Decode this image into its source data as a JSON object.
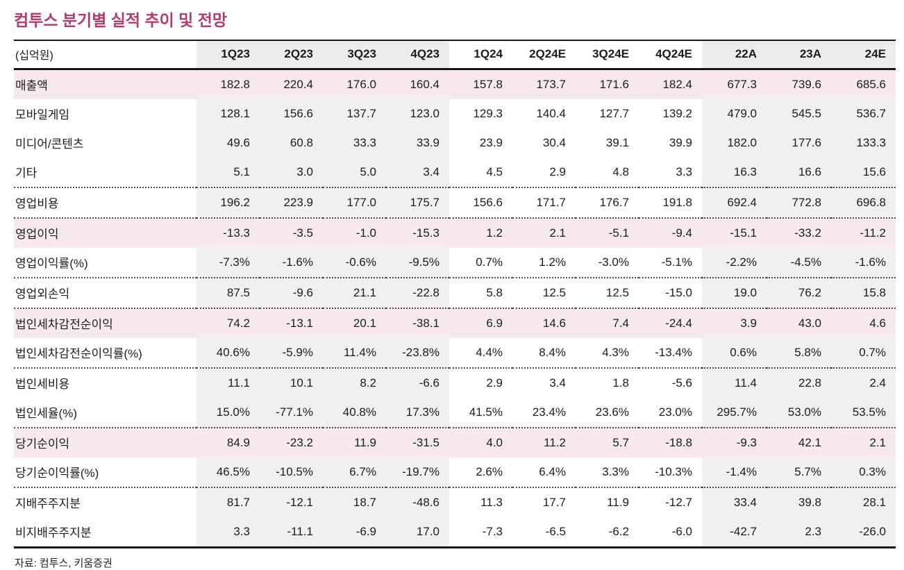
{
  "title": "컴투스 분기별 실적 추이 및 전망",
  "source": "자료: 컴투스, 키움증권",
  "colors": {
    "title_accent": "#b13c6e",
    "highlight_row_bg": "#f8e9ee",
    "shaded_column_bg": "#f1eff0",
    "rule_color": "#161616"
  },
  "table": {
    "unit_label": "(십억원)",
    "columns": [
      "1Q23",
      "2Q23",
      "3Q23",
      "4Q23",
      "1Q24",
      "2Q24E",
      "3Q24E",
      "4Q24E",
      "22A",
      "23A",
      "24E"
    ],
    "rows": [
      {
        "label": "매출액",
        "highlight": true,
        "sep_above": false,
        "values": [
          "182.8",
          "220.4",
          "176.0",
          "160.4",
          "157.8",
          "173.7",
          "171.6",
          "182.4",
          "677.3",
          "739.6",
          "685.6"
        ]
      },
      {
        "label": "모바일게임",
        "highlight": false,
        "sep_above": false,
        "values": [
          "128.1",
          "156.6",
          "137.7",
          "123.0",
          "129.3",
          "140.4",
          "127.7",
          "139.2",
          "479.0",
          "545.5",
          "536.7"
        ]
      },
      {
        "label": "미디어/콘텐츠",
        "highlight": false,
        "sep_above": false,
        "values": [
          "49.6",
          "60.8",
          "33.3",
          "33.9",
          "23.9",
          "30.4",
          "39.1",
          "39.9",
          "182.0",
          "177.6",
          "133.3"
        ]
      },
      {
        "label": "기타",
        "highlight": false,
        "sep_above": false,
        "values": [
          "5.1",
          "3.0",
          "5.0",
          "3.4",
          "4.5",
          "2.9",
          "4.8",
          "3.3",
          "16.3",
          "16.6",
          "15.6"
        ]
      },
      {
        "label": "영업비용",
        "highlight": false,
        "sep_above": true,
        "values": [
          "196.2",
          "223.9",
          "177.0",
          "175.7",
          "156.6",
          "171.7",
          "176.7",
          "191.8",
          "692.4",
          "772.8",
          "696.8"
        ]
      },
      {
        "label": "영업이익",
        "highlight": true,
        "sep_above": true,
        "values": [
          "-13.3",
          "-3.5",
          "-1.0",
          "-15.3",
          "1.2",
          "2.1",
          "-5.1",
          "-9.4",
          "-15.1",
          "-33.2",
          "-11.2"
        ]
      },
      {
        "label": "영업이익률(%)",
        "highlight": false,
        "sep_above": false,
        "values": [
          "-7.3%",
          "-1.6%",
          "-0.6%",
          "-9.5%",
          "0.7%",
          "1.2%",
          "-3.0%",
          "-5.1%",
          "-2.2%",
          "-4.5%",
          "-1.6%"
        ]
      },
      {
        "label": "영업외손익",
        "highlight": false,
        "sep_above": true,
        "values": [
          "87.5",
          "-9.6",
          "21.1",
          "-22.8",
          "5.8",
          "12.5",
          "12.5",
          "-15.0",
          "19.0",
          "76.2",
          "15.8"
        ]
      },
      {
        "label": "법인세차감전순이익",
        "highlight": true,
        "sep_above": true,
        "values": [
          "74.2",
          "-13.1",
          "20.1",
          "-38.1",
          "6.9",
          "14.6",
          "7.4",
          "-24.4",
          "3.9",
          "43.0",
          "4.6"
        ]
      },
      {
        "label": "법인세차감전순이익률(%)",
        "highlight": false,
        "sep_above": false,
        "values": [
          "40.6%",
          "-5.9%",
          "11.4%",
          "-23.8%",
          "4.4%",
          "8.4%",
          "4.3%",
          "-13.4%",
          "0.6%",
          "5.8%",
          "0.7%"
        ]
      },
      {
        "label": "법인세비용",
        "highlight": false,
        "sep_above": true,
        "values": [
          "11.1",
          "10.1",
          "8.2",
          "-6.6",
          "2.9",
          "3.4",
          "1.8",
          "-5.6",
          "11.4",
          "22.8",
          "2.4"
        ]
      },
      {
        "label": "법인세율(%)",
        "highlight": false,
        "sep_above": false,
        "values": [
          "15.0%",
          "-77.1%",
          "40.8%",
          "17.3%",
          "41.5%",
          "23.4%",
          "23.6%",
          "23.0%",
          "295.7%",
          "53.0%",
          "53.5%"
        ]
      },
      {
        "label": "당기순이익",
        "highlight": true,
        "sep_above": true,
        "values": [
          "84.9",
          "-23.2",
          "11.9",
          "-31.5",
          "4.0",
          "11.2",
          "5.7",
          "-18.8",
          "-9.3",
          "42.1",
          "2.1"
        ]
      },
      {
        "label": "당기순이익률(%)",
        "highlight": false,
        "sep_above": false,
        "values": [
          "46.5%",
          "-10.5%",
          "6.7%",
          "-19.7%",
          "2.6%",
          "6.4%",
          "3.3%",
          "-10.3%",
          "-1.4%",
          "5.7%",
          "0.3%"
        ]
      },
      {
        "label": "지배주주지분",
        "highlight": false,
        "sep_above": true,
        "values": [
          "81.7",
          "-12.1",
          "18.7",
          "-48.6",
          "11.3",
          "17.7",
          "11.9",
          "-12.7",
          "33.4",
          "39.8",
          "28.1"
        ]
      },
      {
        "label": "비지배주주지분",
        "highlight": false,
        "sep_above": false,
        "values": [
          "3.3",
          "-11.1",
          "-6.9",
          "17.0",
          "-7.3",
          "-6.5",
          "-6.2",
          "-6.0",
          "-42.7",
          "2.3",
          "-26.0"
        ]
      }
    ]
  }
}
